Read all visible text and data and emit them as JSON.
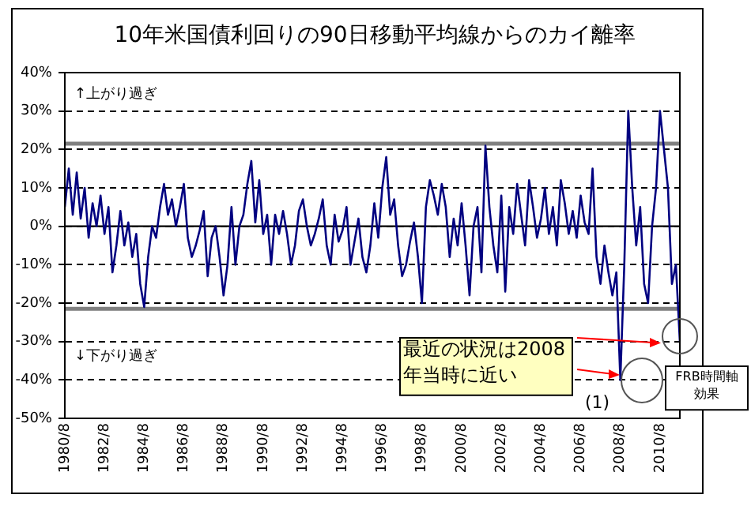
{
  "chart_data": {
    "type": "line",
    "title": "10年米国債利回りの90日移動平均線からのカイ離率",
    "categories": [
      "1980/8",
      null,
      null,
      null,
      null,
      null,
      null,
      null,
      null,
      null,
      "1982/8",
      null,
      null,
      null,
      null,
      null,
      null,
      null,
      null,
      null,
      "1984/8",
      null,
      null,
      null,
      null,
      null,
      null,
      null,
      null,
      null,
      "1986/8",
      null,
      null,
      null,
      null,
      null,
      null,
      null,
      null,
      null,
      "1988/8",
      null,
      null,
      null,
      null,
      null,
      null,
      null,
      null,
      null,
      "1990/8",
      null,
      null,
      null,
      null,
      null,
      null,
      null,
      null,
      null,
      "1992/8",
      null,
      null,
      null,
      null,
      null,
      null,
      null,
      null,
      null,
      "1994/8",
      null,
      null,
      null,
      null,
      null,
      null,
      null,
      null,
      null,
      "1996/8",
      null,
      null,
      null,
      null,
      null,
      null,
      null,
      null,
      null,
      "1998/8",
      null,
      null,
      null,
      null,
      null,
      null,
      null,
      null,
      null,
      "2000/8",
      null,
      null,
      null,
      null,
      null,
      null,
      null,
      null,
      null,
      "2002/8",
      null,
      null,
      null,
      null,
      null,
      null,
      null,
      null,
      null,
      "2004/8",
      null,
      null,
      null,
      null,
      null,
      null,
      null,
      null,
      null,
      "2006/8",
      null,
      null,
      null,
      null,
      null,
      null,
      null,
      null,
      null,
      "2008/8",
      null,
      null,
      null,
      null,
      null,
      null,
      null,
      null,
      null,
      "2010/8",
      null,
      null,
      null,
      null,
      null
    ],
    "series": [
      {
        "color": "#000080",
        "values": [
          5,
          15,
          3,
          14,
          2,
          10,
          -3,
          6,
          0,
          8,
          -2,
          5,
          -12,
          -5,
          4,
          -5,
          1,
          -8,
          -2,
          -15,
          -21,
          -8,
          0,
          -3,
          5,
          11,
          3,
          7,
          0,
          5,
          11,
          -3,
          -8,
          -5,
          -1,
          4,
          -13,
          -3,
          0,
          -8,
          -18,
          -10,
          5,
          -10,
          0,
          3,
          11,
          17,
          1,
          12,
          -2,
          3,
          -10,
          3,
          -2,
          4,
          -2,
          -10,
          -5,
          4,
          7,
          0,
          -5,
          -2,
          2,
          7,
          -5,
          -10,
          3,
          -4,
          -1,
          5,
          -10,
          -4,
          2,
          -8,
          -12,
          -5,
          6,
          -3,
          10,
          18,
          3,
          7,
          -5,
          -13,
          -10,
          -4,
          1,
          -8,
          -20,
          5,
          12,
          8,
          3,
          11,
          5,
          -8,
          2,
          -5,
          6,
          -5,
          -18,
          0,
          5,
          -12,
          21,
          5,
          -5,
          -12,
          8,
          -17,
          5,
          -2,
          11,
          3,
          -5,
          12,
          5,
          -3,
          2,
          10,
          -2,
          5,
          -5,
          12,
          6,
          -2,
          4,
          -3,
          8,
          1,
          -2,
          15,
          -8,
          -15,
          -5,
          -12,
          -18,
          -12,
          -40,
          -10,
          30,
          10,
          -5,
          5,
          -15,
          -20,
          0,
          10,
          30,
          20,
          10,
          -15,
          -10,
          -30
        ]
      }
    ],
    "ylim": [
      -50,
      40
    ],
    "yticks": [
      {
        "value": 40,
        "label": "40%"
      },
      {
        "value": 30,
        "label": "30%"
      },
      {
        "value": 20,
        "label": "20%"
      },
      {
        "value": 10,
        "label": "10%"
      },
      {
        "value": 0,
        "label": "0%"
      },
      {
        "value": -10,
        "label": "-10%"
      },
      {
        "value": -20,
        "label": "-20%"
      },
      {
        "value": -30,
        "label": "-30%"
      },
      {
        "value": -40,
        "label": "-40%"
      },
      {
        "value": -50,
        "label": "-50%"
      }
    ],
    "grid": "y",
    "legend": false,
    "ref_lines": [
      {
        "axis": "y",
        "value": 21.5,
        "color": "#808080",
        "line_style": "solid"
      },
      {
        "axis": "y",
        "value": -21.5,
        "color": "#808080",
        "line_style": "solid"
      },
      {
        "axis": "y",
        "value": 0,
        "color": "#000000",
        "line_style": "solid"
      }
    ],
    "annotations": [
      "↑上がり過ぎ",
      "↓下がり過ぎ",
      "最近の状況は2008年当時に近い",
      "(1)",
      "FRB時間軸効果"
    ]
  }
}
